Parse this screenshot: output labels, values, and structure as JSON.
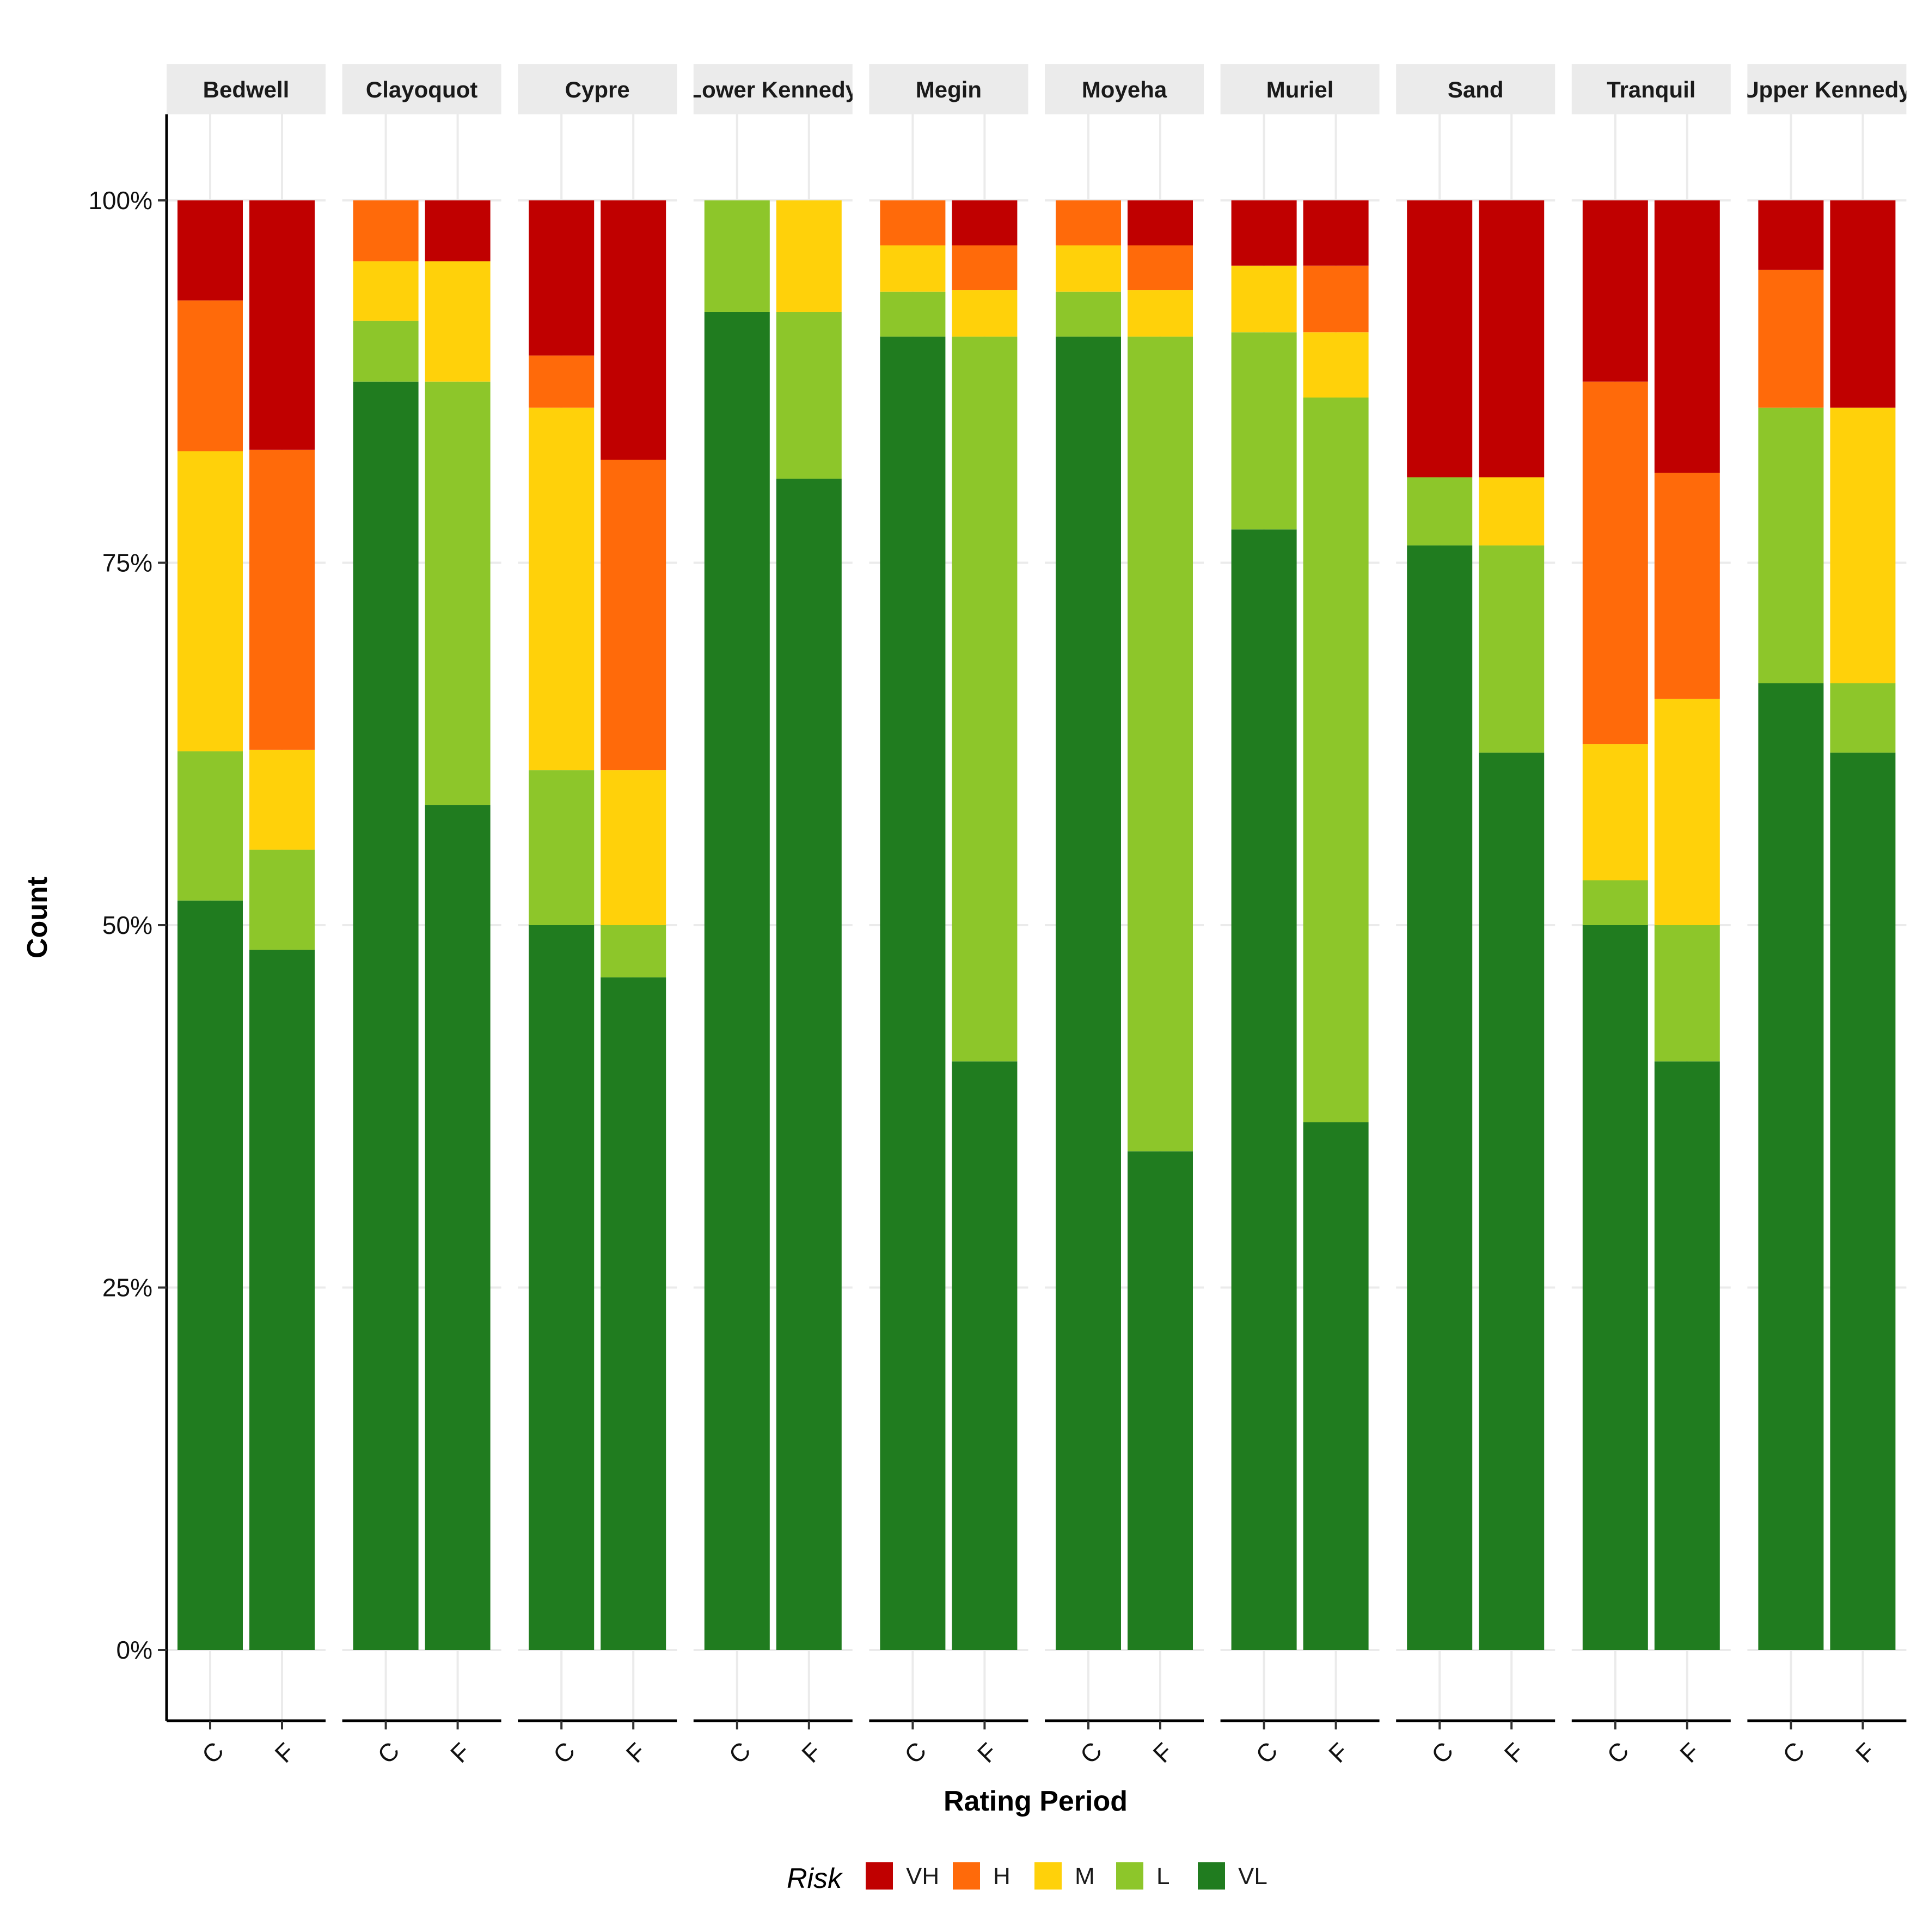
{
  "chart_data": {
    "type": "bar",
    "stacked": true,
    "percent": true,
    "facets": [
      "Bedwell",
      "Clayoquot",
      "Cypre",
      "Lower Kennedy",
      "Megin",
      "Moyeha",
      "Muriel",
      "Sand",
      "Tranquil",
      "Upper Kennedy"
    ],
    "categories": [
      "C",
      "F"
    ],
    "xlabel": "Rating Period",
    "ylabel": "Count",
    "y_ticks": [
      "0%",
      "25%",
      "50%",
      "75%",
      "100%"
    ],
    "ylim": [
      0,
      1
    ],
    "grid": true,
    "legend_title": "Risk",
    "legend_position": "bottom",
    "series": [
      {
        "name": "VH",
        "color": "#C00000"
      },
      {
        "name": "H",
        "color": "#FF6A0A"
      },
      {
        "name": "M",
        "color": "#FFD10A"
      },
      {
        "name": "L",
        "color": "#8DC62A"
      },
      {
        "name": "VL",
        "color": "#207C1F"
      }
    ],
    "stack_order_bottom_to_top": [
      "VL",
      "L",
      "M",
      "H",
      "VH"
    ],
    "proportions": {
      "Bedwell": {
        "C": {
          "VL": 0.517,
          "L": 0.103,
          "M": 0.207,
          "H": 0.104,
          "VH": 0.069
        },
        "F": {
          "VL": 0.483,
          "L": 0.069,
          "M": 0.069,
          "H": 0.207,
          "VH": 0.172
        }
      },
      "Clayoquot": {
        "C": {
          "VL": 0.875,
          "L": 0.042,
          "M": 0.041,
          "H": 0.042,
          "VH": 0.0
        },
        "F": {
          "VL": 0.583,
          "L": 0.292,
          "M": 0.083,
          "H": 0.0,
          "VH": 0.042
        }
      },
      "Cypre": {
        "C": {
          "VL": 0.5,
          "L": 0.107,
          "M": 0.25,
          "H": 0.036,
          "VH": 0.107
        },
        "F": {
          "VL": 0.464,
          "L": 0.036,
          "M": 0.107,
          "H": 0.214,
          "VH": 0.179
        }
      },
      "Lower Kennedy": {
        "C": {
          "VL": 0.923,
          "L": 0.077,
          "M": 0.0,
          "H": 0.0,
          "VH": 0.0
        },
        "F": {
          "VL": 0.808,
          "L": 0.115,
          "M": 0.077,
          "H": 0.0,
          "VH": 0.0
        }
      },
      "Megin": {
        "C": {
          "VL": 0.906,
          "L": 0.031,
          "M": 0.032,
          "H": 0.031,
          "VH": 0.0
        },
        "F": {
          "VL": 0.406,
          "L": 0.5,
          "M": 0.032,
          "H": 0.031,
          "VH": 0.031
        }
      },
      "Moyeha": {
        "C": {
          "VL": 0.906,
          "L": 0.031,
          "M": 0.032,
          "H": 0.031,
          "VH": 0.0
        },
        "F": {
          "VL": 0.344,
          "L": 0.562,
          "M": 0.032,
          "H": 0.031,
          "VH": 0.031
        }
      },
      "Muriel": {
        "C": {
          "VL": 0.773,
          "L": 0.136,
          "M": 0.046,
          "H": 0.0,
          "VH": 0.045
        },
        "F": {
          "VL": 0.364,
          "L": 0.5,
          "M": 0.045,
          "H": 0.046,
          "VH": 0.045
        }
      },
      "Sand": {
        "C": {
          "VL": 0.762,
          "L": 0.047,
          "M": 0.0,
          "H": 0.0,
          "VH": 0.191
        },
        "F": {
          "VL": 0.619,
          "L": 0.143,
          "M": 0.047,
          "H": 0.0,
          "VH": 0.191
        }
      },
      "Tranquil": {
        "C": {
          "VL": 0.5,
          "L": 0.031,
          "M": 0.094,
          "H": 0.25,
          "VH": 0.125
        },
        "F": {
          "VL": 0.406,
          "L": 0.094,
          "M": 0.156,
          "H": 0.156,
          "VH": 0.188
        }
      },
      "Upper Kennedy": {
        "C": {
          "VL": 0.667,
          "L": 0.19,
          "M": 0.0,
          "H": 0.095,
          "VH": 0.048
        },
        "F": {
          "VL": 0.619,
          "L": 0.048,
          "M": 0.19,
          "H": 0.0,
          "VH": 0.143
        }
      }
    }
  }
}
